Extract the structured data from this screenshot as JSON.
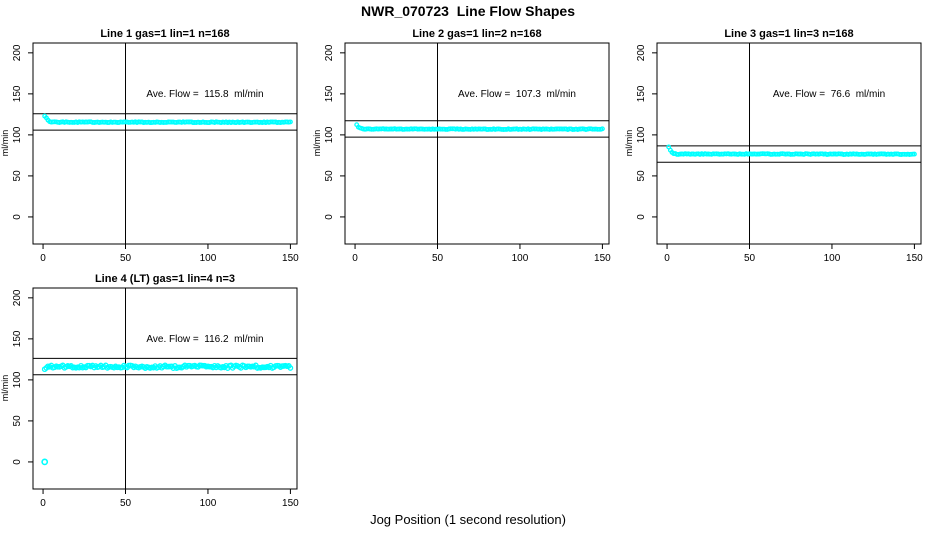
{
  "page_title": "NWR_070723  Line Flow Shapes",
  "xlabel": "Jog Position (1 second resolution)",
  "colors": {
    "data": "#00ffff",
    "axis": "#000000",
    "background": "#ffffff",
    "text": "#000000"
  },
  "chart_data": [
    {
      "type": "scatter",
      "title": "Line 1 gas=1 lin=1 n=168",
      "annotation": "Ave. Flow =  115.8  ml/min",
      "ave_flow": 115.8,
      "n": 168,
      "ylabel": "ml/min",
      "xticks": [
        0,
        50,
        100,
        150
      ],
      "yticks": [
        0,
        50,
        100,
        150,
        200
      ],
      "xlim": [
        -6.1,
        154
      ],
      "ylim": [
        -33,
        212
      ],
      "vline_x": 50,
      "hlines": [
        125.8,
        105.8
      ],
      "x_range": [
        1,
        150
      ],
      "profile": [
        [
          1,
          123
        ],
        [
          2,
          120.5
        ],
        [
          3,
          118
        ],
        [
          4,
          116.5
        ],
        [
          5,
          115.8
        ],
        [
          8,
          115.5
        ],
        [
          150,
          115.4
        ]
      ],
      "jitter": 0.5,
      "marker": "open-circle",
      "marker_r": 1.8,
      "outliers": []
    },
    {
      "type": "scatter",
      "title": "Line 2 gas=1 lin=2 n=168",
      "annotation": "Ave. Flow =  107.3  ml/min",
      "ave_flow": 107.3,
      "n": 168,
      "ylabel": "ml/min",
      "xticks": [
        0,
        50,
        100,
        150
      ],
      "yticks": [
        0,
        50,
        100,
        150,
        200
      ],
      "xlim": [
        -6.1,
        154
      ],
      "ylim": [
        -33,
        212
      ],
      "vline_x": 50,
      "hlines": [
        117.3,
        97.3
      ],
      "x_range": [
        1,
        150
      ],
      "profile": [
        [
          1,
          112
        ],
        [
          2,
          109.5
        ],
        [
          3,
          108.2
        ],
        [
          4,
          107.5
        ],
        [
          6,
          107.1
        ],
        [
          150,
          107
        ]
      ],
      "jitter": 0.45,
      "marker": "open-circle",
      "marker_r": 1.8,
      "outliers": []
    },
    {
      "type": "scatter",
      "title": "Line 3 gas=1 lin=3 n=168",
      "annotation": "Ave. Flow =  76.6  ml/min",
      "ave_flow": 76.6,
      "n": 168,
      "ylabel": "ml/min",
      "xticks": [
        0,
        50,
        100,
        150
      ],
      "yticks": [
        0,
        50,
        100,
        150,
        200
      ],
      "xlim": [
        -6.1,
        154
      ],
      "ylim": [
        -33,
        212
      ],
      "vline_x": 50,
      "hlines": [
        86.6,
        66.6
      ],
      "x_range": [
        1,
        150
      ],
      "profile": [
        [
          1,
          85
        ],
        [
          2,
          81
        ],
        [
          3,
          78.5
        ],
        [
          4,
          77.3
        ],
        [
          6,
          76.7
        ],
        [
          150,
          76.5
        ]
      ],
      "jitter": 0.45,
      "marker": "open-circle",
      "marker_r": 1.8,
      "outliers": []
    },
    {
      "type": "scatter",
      "title": "Line 4 (LT) gas=1 lin=4 n=3",
      "annotation": "Ave. Flow =  116.2  ml/min",
      "ave_flow": 116.2,
      "n": 3,
      "ylabel": "ml/min",
      "xticks": [
        0,
        50,
        100,
        150
      ],
      "yticks": [
        0,
        50,
        100,
        150,
        200
      ],
      "xlim": [
        -6.1,
        154
      ],
      "ylim": [
        -33,
        212
      ],
      "vline_x": 50,
      "hlines": [
        126.2,
        106.2
      ],
      "x_range": [
        1,
        150
      ],
      "profile": [
        [
          1,
          114
        ],
        [
          2,
          116
        ],
        [
          150,
          116
        ]
      ],
      "jitter": 1.7,
      "marker": "open-circle",
      "marker_r": 2.2,
      "outliers": [
        [
          1,
          0
        ]
      ]
    }
  ]
}
